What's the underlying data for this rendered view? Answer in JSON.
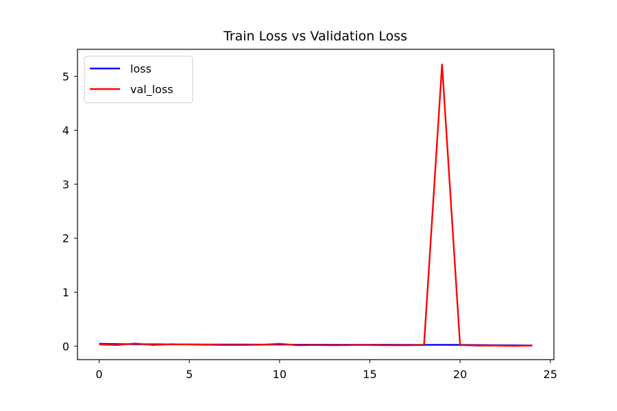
{
  "chart_data": {
    "type": "line",
    "title": "Train Loss vs Validation Loss",
    "xlabel": "",
    "ylabel": "",
    "x": [
      0,
      1,
      2,
      3,
      4,
      5,
      6,
      7,
      8,
      9,
      10,
      11,
      12,
      13,
      14,
      15,
      16,
      17,
      18,
      19,
      20,
      21,
      22,
      23,
      24
    ],
    "xlim": [
      -1.2,
      25.2
    ],
    "ylim": [
      -0.25,
      5.5
    ],
    "xticks": [
      0,
      5,
      10,
      15,
      20,
      25
    ],
    "yticks": [
      0,
      1,
      2,
      3,
      4,
      5
    ],
    "grid": false,
    "legend_position": "top-left",
    "series": [
      {
        "name": "loss",
        "color": "#0000ff",
        "values": [
          0.045,
          0.038,
          0.035,
          0.034,
          0.033,
          0.032,
          0.031,
          0.03,
          0.029,
          0.028,
          0.028,
          0.027,
          0.027,
          0.026,
          0.026,
          0.025,
          0.025,
          0.024,
          0.024,
          0.024,
          0.023,
          0.02,
          0.017,
          0.015,
          0.014
        ]
      },
      {
        "name": "val_loss",
        "color": "#ff0000",
        "values": [
          0.03,
          0.02,
          0.05,
          0.02,
          0.035,
          0.03,
          0.025,
          0.02,
          0.02,
          0.025,
          0.045,
          0.015,
          0.02,
          0.015,
          0.02,
          0.02,
          0.015,
          0.015,
          0.02,
          5.22,
          0.02,
          0.01,
          0.01,
          0.005,
          0.01
        ]
      }
    ]
  }
}
